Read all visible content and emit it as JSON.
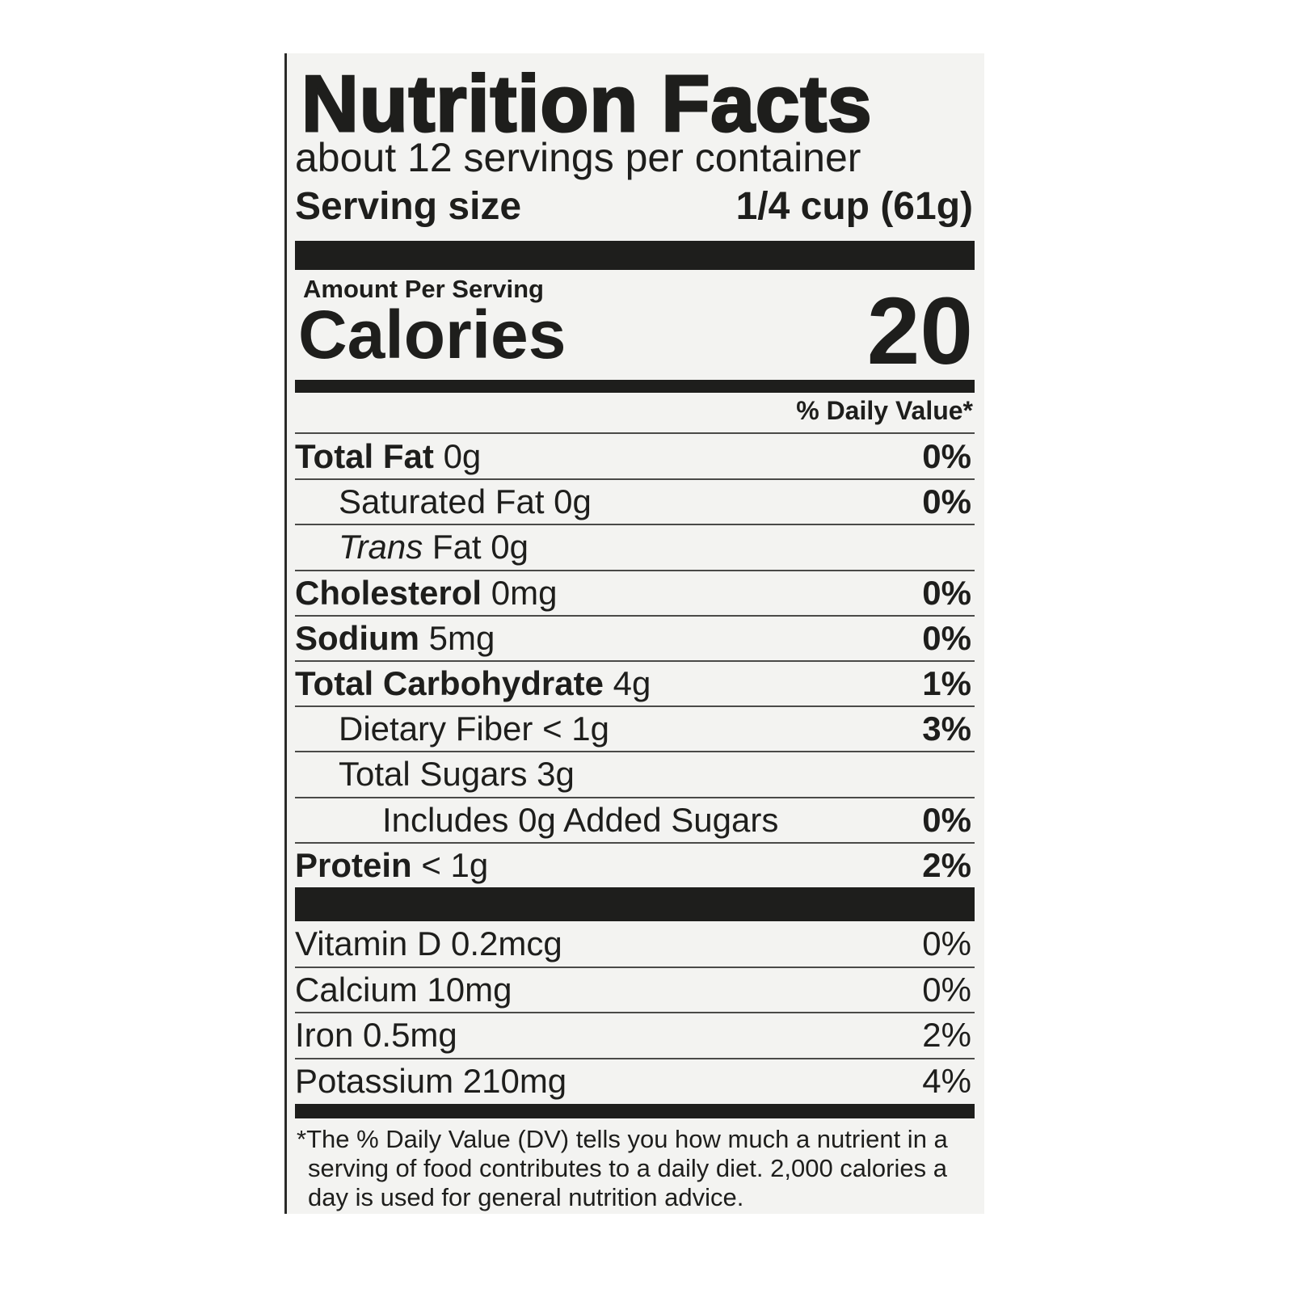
{
  "title": "Nutrition Facts",
  "servings": "about 12 servings per container",
  "serving_size": {
    "label": "Serving size",
    "value": "1/4 cup (61g)"
  },
  "amount_per_serving": "Amount Per Serving",
  "calories": {
    "label": "Calories",
    "value": "20"
  },
  "dv_header": "% Daily Value*",
  "nutrients": [
    {
      "name": "Total Fat",
      "amount": "0g",
      "dv": "0%"
    },
    {
      "name": "Saturated Fat",
      "amount": "0g",
      "dv": "0%"
    },
    {
      "prefix": "Trans",
      "name": "Fat",
      "amount": "0g"
    },
    {
      "name": "Cholesterol",
      "amount": "0mg",
      "dv": "0%"
    },
    {
      "name": "Sodium",
      "amount": "5mg",
      "dv": "0%"
    },
    {
      "name": "Total Carbohydrate",
      "amount": "4g",
      "dv": "1%"
    },
    {
      "name": "Dietary Fiber",
      "amount": "< 1g",
      "dv": "3%"
    },
    {
      "name": "Total Sugars",
      "amount": "3g"
    },
    {
      "name": "Includes 0g Added Sugars",
      "dv": "0%"
    },
    {
      "name": "Protein",
      "amount": "< 1g",
      "dv": "2%"
    }
  ],
  "vitamins": [
    {
      "name": "Vitamin D",
      "amount": "0.2mcg",
      "dv": "0%"
    },
    {
      "name": "Calcium",
      "amount": "10mg",
      "dv": "0%"
    },
    {
      "name": "Iron",
      "amount": "0.5mg",
      "dv": "2%"
    },
    {
      "name": "Potassium",
      "amount": "210mg",
      "dv": "4%"
    }
  ],
  "footnote": "*The % Daily Value (DV) tells you how much a nutrient in a serving of food contributes to a daily diet. 2,000 calories a day is used for general nutrition advice."
}
